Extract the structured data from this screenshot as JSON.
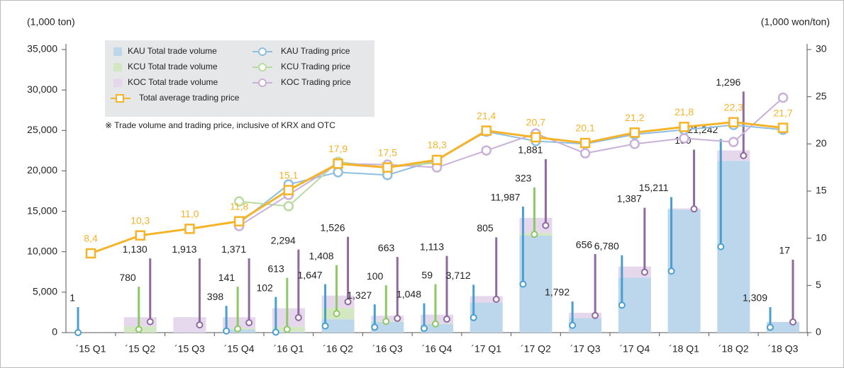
{
  "chart_data": {
    "type": "bar",
    "y_label": "(1,000 ton)",
    "y2_label": "(1,000 won/ton)",
    "note": "※ Trade volume and trading price, inclusive of KRX and OTC",
    "categories": [
      "´15 Q1",
      "´15 Q2",
      "´15 Q3",
      "´15 Q4",
      "´16 Q1",
      "´16 Q2",
      "´16 Q3",
      "´16 Q4",
      "´17 Q1",
      "´17 Q2",
      "´17 Q3",
      "´17 Q4",
      "´18 Q1",
      "´18 Q2",
      "´18 Q3"
    ],
    "ylim": [
      0,
      35000
    ],
    "yticks": [
      0,
      {
        "value": 5000,
        "label": "5,000"
      },
      {
        "value": 10000,
        "label": "10,000"
      },
      {
        "value": 15000,
        "label": "15,000"
      },
      {
        "value": 20000,
        "label": "20,000"
      },
      {
        "value": 25000,
        "label": "25,000"
      },
      {
        "value": 30000,
        "label": "30,000"
      },
      {
        "value": 35000,
        "label": "35,000"
      }
    ],
    "y2lim": [
      0,
      30
    ],
    "y2ticks": [
      0,
      5,
      10,
      15,
      20,
      25,
      30
    ],
    "series": [
      {
        "name": "KAU Total trade volume",
        "type": "bar",
        "color": "#bcd6ec",
        "label_color": "#4a9fd0",
        "values": [
          1,
          null,
          null,
          398,
          102,
          1647,
          1327,
          1048,
          3712,
          11987,
          1792,
          6780,
          15211,
          21242,
          1309
        ],
        "value_labels": [
          "1",
          null,
          null,
          "398",
          "102",
          "1,647",
          "1,327",
          "1,048",
          "3,712",
          "11,987",
          "1,792",
          "6,780",
          "15,211",
          "21,242",
          "1,309"
        ]
      },
      {
        "name": "KCU Total trade volume",
        "type": "bar",
        "color": "#d3e7c3",
        "label_color": "#8cc863",
        "values": [
          null,
          780,
          null,
          141,
          613,
          1408,
          100,
          59,
          null,
          323,
          null,
          null,
          null,
          null,
          null
        ],
        "value_labels": [
          null,
          "780",
          null,
          "141",
          "613",
          "1,408",
          "100",
          "59",
          null,
          "323",
          null,
          null,
          null,
          null,
          null
        ]
      },
      {
        "name": "KOC Total trade volume",
        "type": "bar",
        "color": "#e5d7ec",
        "label_color": "#8e6a9e",
        "values": [
          null,
          1130,
          1913,
          1371,
          2294,
          1526,
          663,
          1113,
          805,
          1881,
          656,
          1387,
          150,
          1296,
          17
        ],
        "value_labels": [
          null,
          "1,130",
          "1,913",
          "1,371",
          "2,294",
          "1,526",
          "663",
          "1,113",
          "805",
          "1,881",
          "656",
          "1,387",
          "150",
          "1,296",
          "17"
        ]
      },
      {
        "name": "KAU Trading price",
        "type": "line",
        "axis": "y2",
        "color": "#8fbfe0",
        "values": [
          null,
          null,
          null,
          11.6,
          15.7,
          17.0,
          16.7,
          18.3,
          21.3,
          20.3,
          20.0,
          21.0,
          21.5,
          22.0,
          21.5
        ]
      },
      {
        "name": "KCU Trading price",
        "type": "line",
        "axis": "y2",
        "color": "#b8dca0",
        "values": [
          null,
          null,
          null,
          13.9,
          13.4,
          18.1,
          17.5,
          18.0,
          null,
          null,
          null,
          null,
          null,
          null,
          null
        ]
      },
      {
        "name": "KOC Trading price",
        "type": "line",
        "axis": "y2",
        "color": "#c9b0d8",
        "values": [
          null,
          null,
          null,
          11.3,
          14.6,
          17.9,
          17.8,
          17.5,
          19.3,
          21.1,
          19.0,
          20.0,
          20.6,
          20.2,
          24.9
        ]
      },
      {
        "name": "Total average trading price",
        "type": "line",
        "axis": "y2",
        "color": "#f5b32a",
        "marker": "square",
        "values": [
          8.4,
          10.3,
          11.0,
          11.8,
          15.1,
          17.9,
          17.5,
          18.3,
          21.4,
          20.7,
          20.1,
          21.2,
          21.8,
          22.3,
          21.7
        ],
        "value_labels": [
          "8,4",
          "10,3",
          "11,0",
          "11,8",
          "15,1",
          "17,9",
          "17,5",
          "18,3",
          "21,4",
          "20,7",
          "20,1",
          "21,2",
          "21,8",
          "22,3",
          "21,7"
        ]
      }
    ]
  }
}
